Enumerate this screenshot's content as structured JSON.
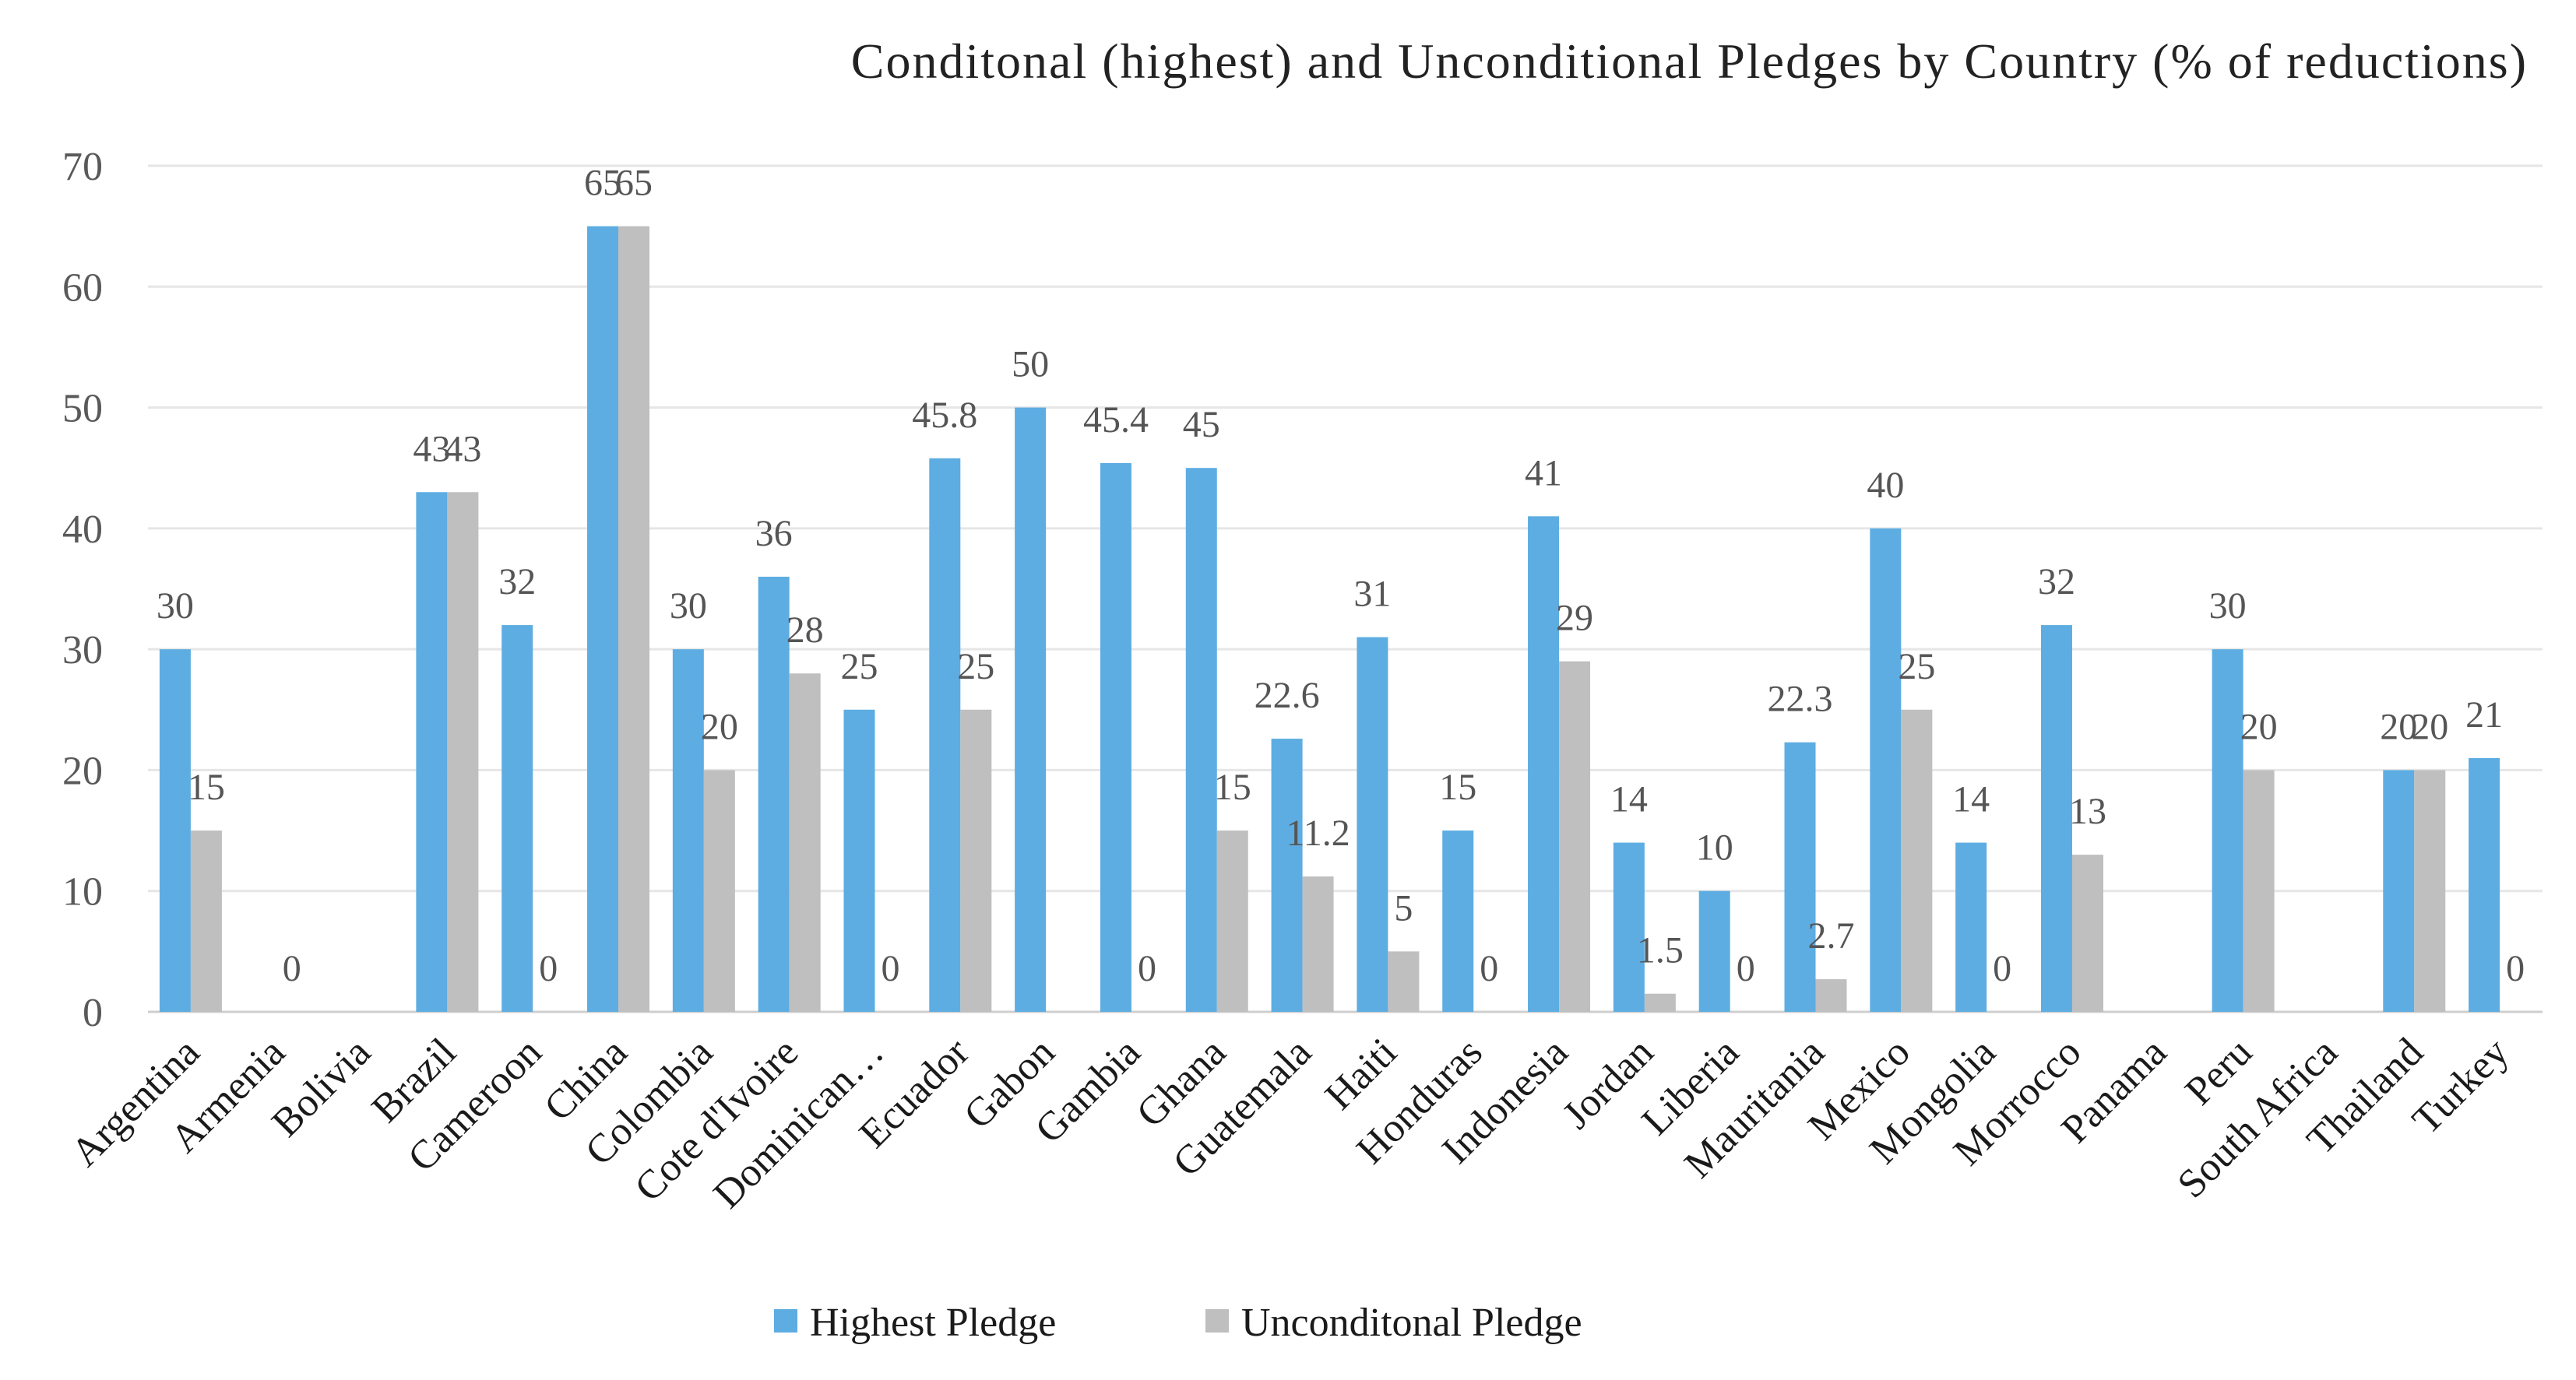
{
  "chart_data": {
    "type": "bar",
    "title": "Conditonal (highest) and Unconditional Pledges by Country (% of reductions)",
    "xlabel": "",
    "ylabel": "",
    "ylim": [
      0,
      70
    ],
    "yticks": [
      0,
      10,
      20,
      30,
      40,
      50,
      60,
      70
    ],
    "legend_position": "bottom",
    "grid": true,
    "categories": [
      "Argentina",
      "Armenia",
      "Bolivia",
      "Brazil",
      "Cameroon",
      "China",
      "Colombia",
      "Cote d'Ivoire",
      "Dominican…",
      "Ecuador",
      "Gabon",
      "Gambia",
      "Ghana",
      "Guatemala",
      "Haiti",
      "Honduras",
      "Indonesia",
      "Jordan",
      "Liberia",
      "Mauritania",
      "Mexico",
      "Mongolia",
      "Morrocco",
      "Panama",
      "Peru",
      "South Africa",
      "Thailand",
      "Turkey"
    ],
    "series": [
      {
        "name": "Highest Pledge",
        "color": "#5dade2",
        "values": [
          30,
          null,
          null,
          43,
          32,
          65,
          30,
          36,
          25,
          45.8,
          50,
          45.4,
          45,
          22.6,
          31,
          15,
          41,
          14,
          10,
          22.3,
          40,
          14,
          32,
          null,
          30,
          null,
          20,
          21
        ],
        "labels": [
          "30",
          "",
          "",
          "43",
          "32",
          "65",
          "30",
          "36",
          "25",
          "45.8",
          "50",
          "45.4",
          "45",
          "22.6",
          "31",
          "15",
          "41",
          "14",
          "10",
          "22.3",
          "40",
          "14",
          "32",
          "",
          "30",
          "",
          "20",
          "21"
        ]
      },
      {
        "name": "Unconditonal Pledge",
        "color": "#bfbfbf",
        "values": [
          15,
          0,
          null,
          43,
          0,
          65,
          20,
          28,
          0,
          25,
          null,
          0,
          15,
          11.2,
          5,
          0,
          29,
          1.5,
          0,
          2.7,
          25,
          0,
          13,
          null,
          20,
          null,
          20,
          0
        ],
        "labels": [
          "15",
          "0",
          "",
          "43",
          "0",
          "65",
          "20",
          "28",
          "0",
          "25",
          "",
          "0",
          "15",
          "11.2",
          "5",
          "0",
          "29",
          "1.5",
          "0",
          "2.7",
          "25",
          "0",
          "13",
          "",
          "20",
          "",
          "20",
          "0"
        ]
      }
    ]
  }
}
